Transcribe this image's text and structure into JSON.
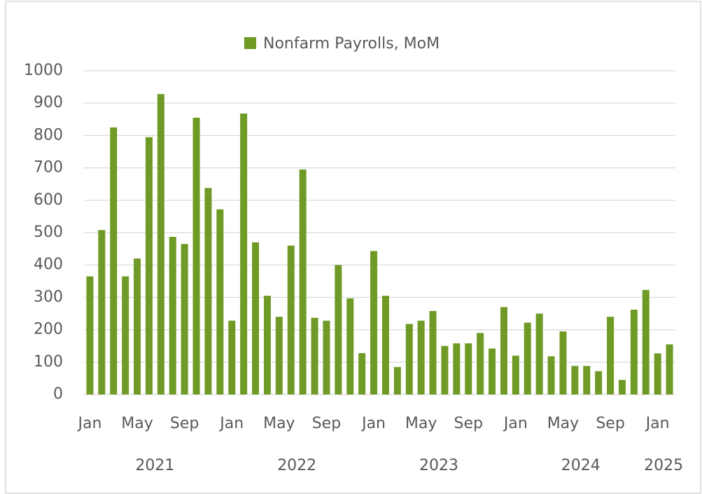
{
  "chart_data": {
    "type": "bar",
    "series": [
      {
        "name": "Nonfarm Payrolls, MoM",
        "color": "#6f9a25",
        "values": [
          365,
          508,
          825,
          365,
          420,
          795,
          928,
          487,
          465,
          855,
          638,
          572,
          228,
          868,
          470,
          305,
          240,
          460,
          695,
          237,
          228,
          400,
          297,
          128,
          443,
          305,
          85,
          218,
          228,
          258,
          150,
          158,
          158,
          190,
          142,
          270,
          120,
          222,
          250,
          118,
          195,
          88,
          88,
          72,
          240,
          45,
          262,
          323,
          127,
          155
        ]
      }
    ],
    "categories": [
      "Jan",
      null,
      null,
      null,
      "May",
      null,
      null,
      null,
      "Sep",
      null,
      null,
      null,
      "Jan",
      null,
      null,
      null,
      "May",
      null,
      null,
      null,
      "Sep",
      null,
      null,
      null,
      "Jan",
      null,
      null,
      null,
      "May",
      null,
      null,
      null,
      "Sep",
      null,
      null,
      null,
      "Jan",
      null,
      null,
      null,
      "May",
      null,
      null,
      null,
      "Sep",
      null,
      null,
      null,
      "Jan",
      null
    ],
    "groups": [
      "2021",
      "2022",
      "2023",
      "2024",
      "2025"
    ],
    "ylim": [
      0,
      1000
    ],
    "yticks": [
      0,
      100,
      200,
      300,
      400,
      500,
      600,
      700,
      800,
      900,
      1000
    ],
    "grid": true,
    "legend": "top"
  }
}
